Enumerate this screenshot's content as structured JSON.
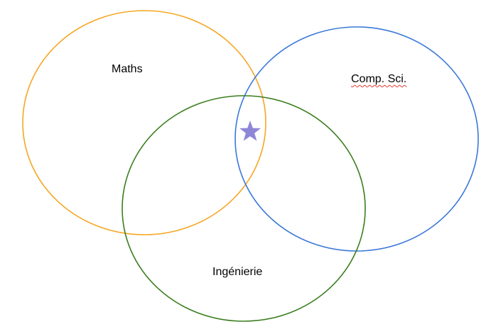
{
  "diagram": {
    "sets": [
      {
        "id": "maths",
        "label": "Maths",
        "color": "#f5a623"
      },
      {
        "id": "cs",
        "label": "Comp. Sci.",
        "color": "#3a78d8"
      },
      {
        "id": "eng",
        "label": "Ingénierie",
        "color": "#3a7d1e"
      }
    ],
    "marker": {
      "icon": "star-icon",
      "color": "#8e86d6"
    }
  }
}
